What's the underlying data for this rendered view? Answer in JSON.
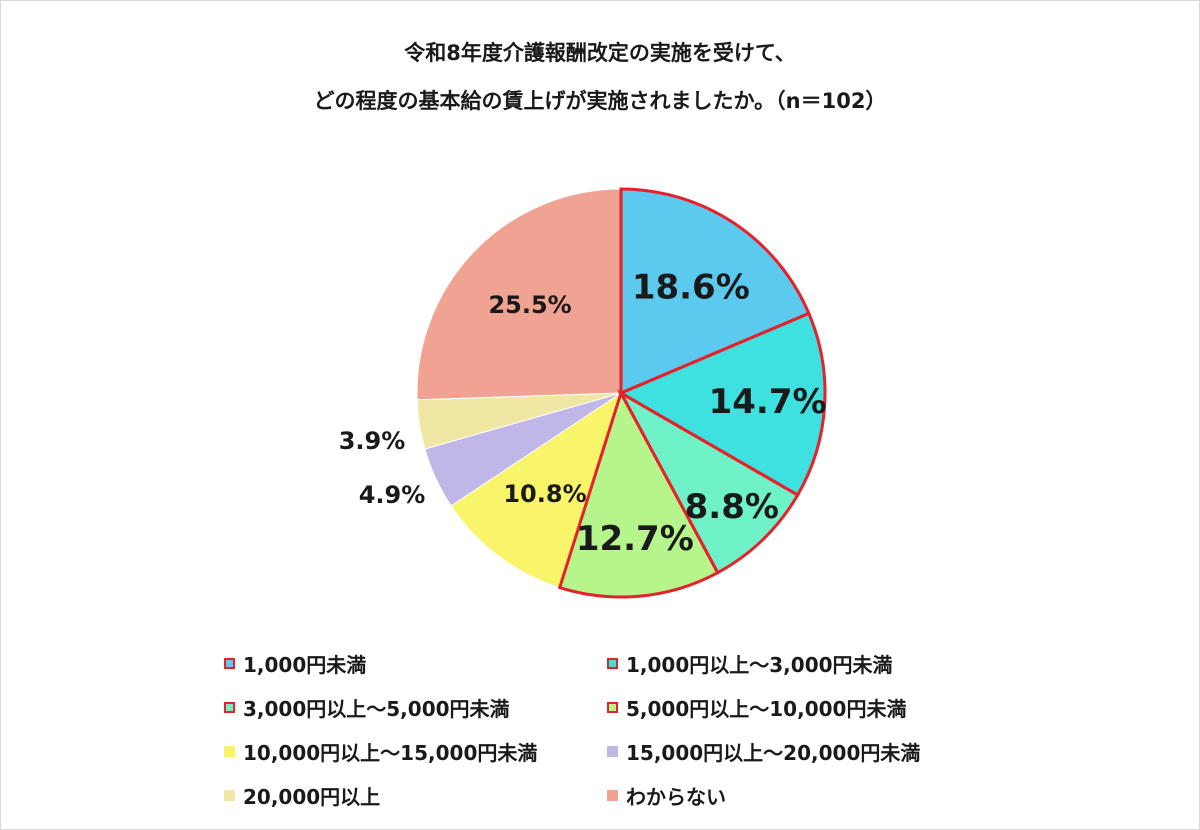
{
  "title_line1": "令和8年度介護報酬改定の実施を受けて、",
  "title_line2": "どの程度の基本給の賃上げが実施されましたか。（n＝102）",
  "chart_data": {
    "type": "pie",
    "title": "令和8年度介護報酬改定の実施を受けて、どの程度の基本給の賃上げが実施されましたか。（n＝102）",
    "start": "12 o'clock, clockwise",
    "legend_position": "bottom",
    "slices": [
      {
        "label": "1,000円未満",
        "value": 18.6,
        "display": "18.6%",
        "color": "#5ccaee",
        "highlighted": true
      },
      {
        "label": "1,000円以上～3,000円未満",
        "value": 14.7,
        "display": "14.7%",
        "color": "#3fe0e0",
        "highlighted": true
      },
      {
        "label": "3,000円以上～5,000円未満",
        "value": 8.8,
        "display": "8.8%",
        "color": "#6ff2c8",
        "highlighted": true
      },
      {
        "label": "5,000円以上～10,000円未満",
        "value": 12.7,
        "display": "12.7%",
        "color": "#b5f58c",
        "highlighted": true
      },
      {
        "label": "10,000円以上～15,000円未満",
        "value": 10.8,
        "display": "10.8%",
        "color": "#f8f56a",
        "highlighted": false
      },
      {
        "label": "15,000円以上～20,000円未満",
        "value": 4.9,
        "display": "4.9%",
        "color": "#c0b7e8",
        "highlighted": false
      },
      {
        "label": "20,000円以上",
        "value": 3.9,
        "display": "3.9%",
        "color": "#f0e7a4",
        "highlighted": false
      },
      {
        "label": "わからない",
        "value": 25.5,
        "display": "25.5%",
        "color": "#f0a392",
        "highlighted": false
      }
    ],
    "highlight_color": "#e8202a"
  }
}
